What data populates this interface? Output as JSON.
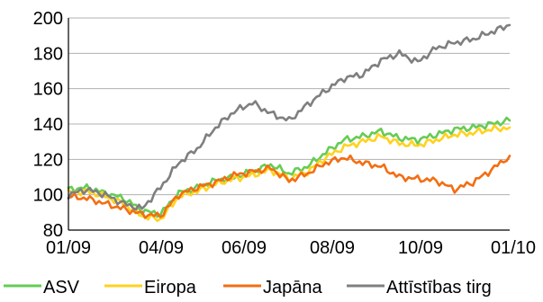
{
  "chart_data": {
    "type": "line",
    "title": "",
    "xlabel": "",
    "ylabel": "",
    "ylim": [
      80,
      200
    ],
    "yticks": [
      80,
      100,
      120,
      140,
      160,
      180,
      200
    ],
    "x_tick_labels": [
      "01/09",
      "04/09",
      "06/09",
      "08/09",
      "10/09",
      "01/10"
    ],
    "grid": true,
    "legend_position": "bottom",
    "x": [
      "01/09",
      "01/09",
      "02/09",
      "02/09",
      "03/09",
      "03/09",
      "04/09",
      "04/09",
      "05/09",
      "05/09",
      "06/09",
      "06/09",
      "07/09",
      "07/09",
      "08/09",
      "08/09",
      "09/09",
      "09/09",
      "10/09",
      "10/09",
      "11/09",
      "11/09",
      "12/09",
      "12/09",
      "01/10"
    ],
    "series": [
      {
        "name": "ASV",
        "color": "#66cc55",
        "values": [
          103,
          104,
          101,
          98,
          91,
          89,
          101,
          104,
          108,
          110,
          113,
          117,
          112,
          116,
          124,
          131,
          133,
          136,
          132,
          131,
          134,
          137,
          138,
          140,
          142
        ]
      },
      {
        "name": "Eiropa",
        "color": "#ffd21f",
        "values": [
          101,
          102,
          99,
          95,
          88,
          86,
          99,
          102,
          106,
          109,
          111,
          114,
          109,
          113,
          121,
          127,
          130,
          133,
          129,
          128,
          131,
          134,
          135,
          137,
          138
        ]
      },
      {
        "name": "Japāna",
        "color": "#f36e12",
        "values": [
          99,
          98,
          95,
          92,
          89,
          88,
          100,
          104,
          107,
          111,
          113,
          115,
          108,
          112,
          118,
          121,
          118,
          116,
          110,
          109,
          108,
          103,
          107,
          114,
          122
        ]
      },
      {
        "name": "Attīstības tirg",
        "color": "#7f7f7f",
        "values": [
          100,
          103,
          100,
          95,
          92,
          104,
          118,
          126,
          138,
          147,
          152,
          146,
          142,
          151,
          159,
          166,
          168,
          176,
          180,
          175,
          183,
          186,
          188,
          192,
          196
        ]
      }
    ]
  }
}
